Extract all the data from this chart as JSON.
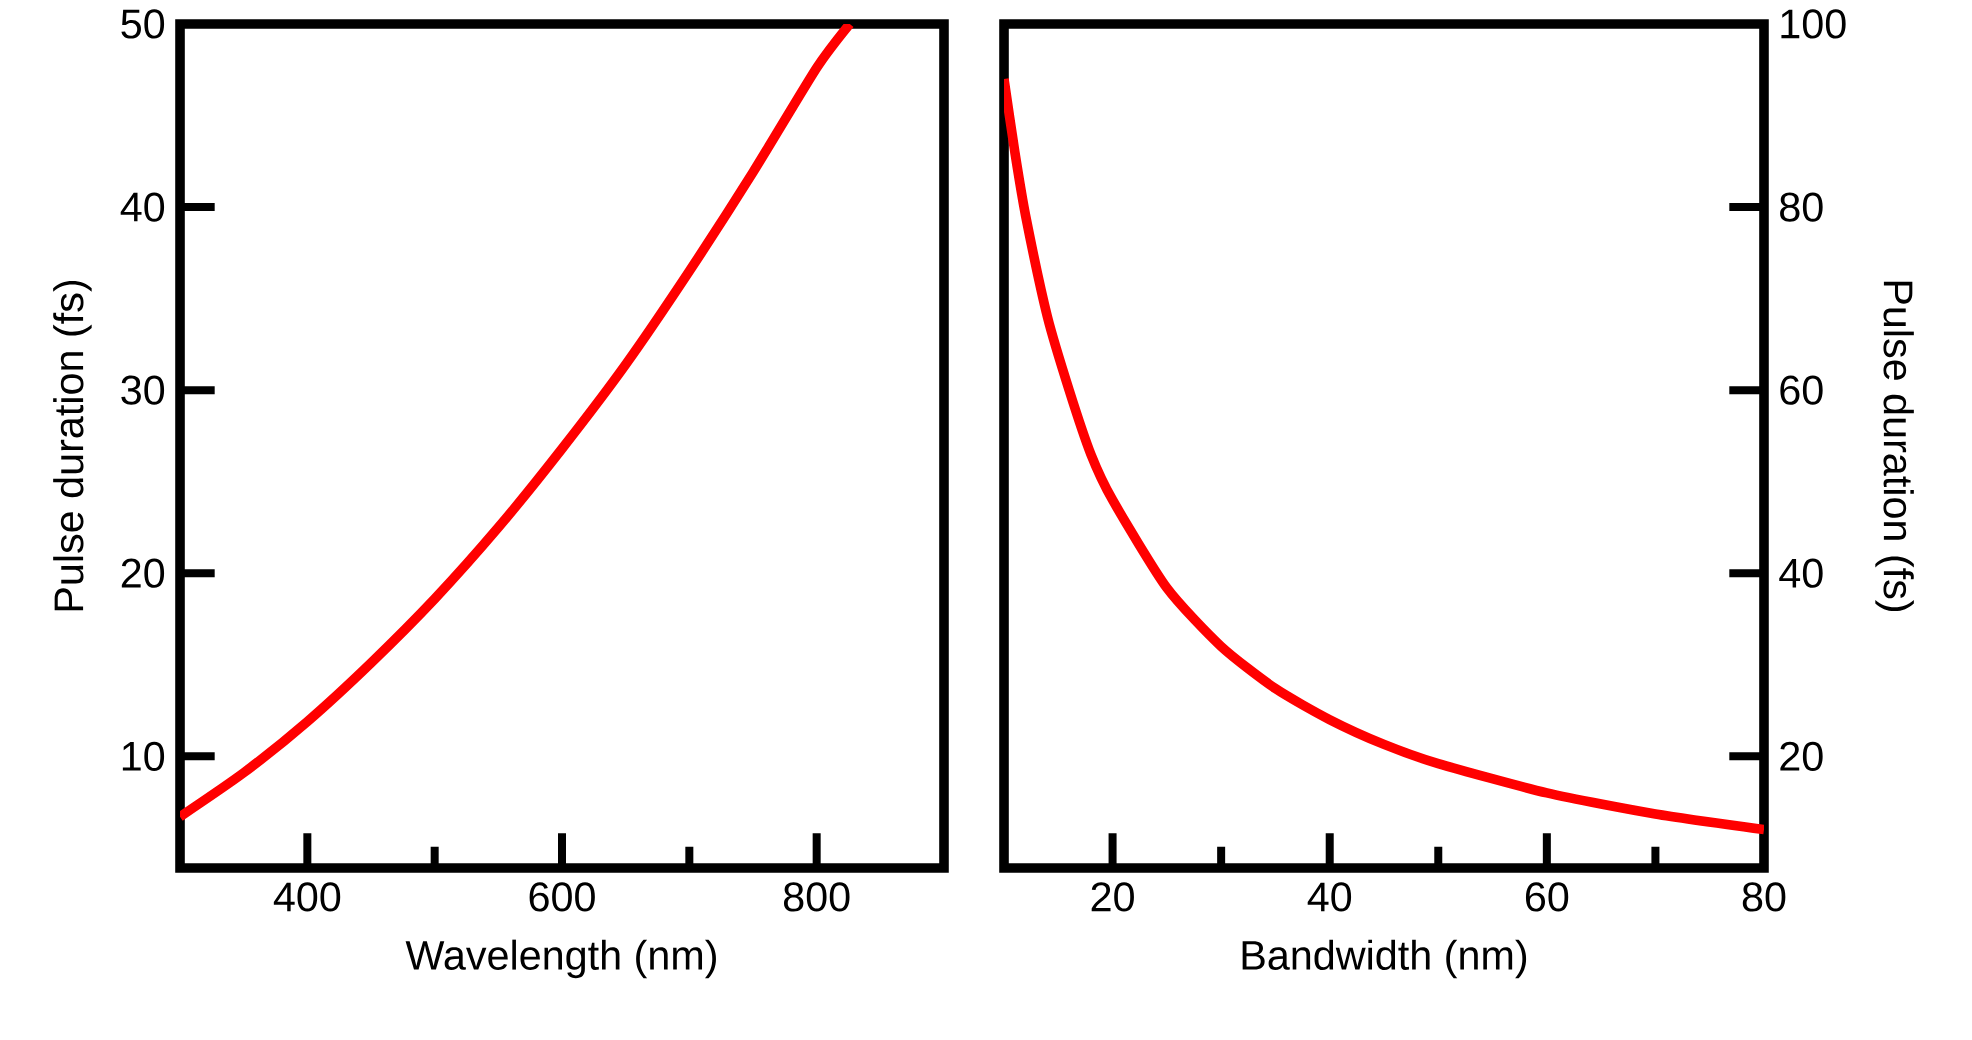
{
  "chart_data": [
    {
      "type": "line",
      "xlabel": "Wavelength (nm)",
      "ylabel": "Pulse duration (fs)",
      "xlim": [
        300,
        900
      ],
      "ylim": [
        3.9,
        50
      ],
      "xticks": [
        400,
        {
          "value": 500,
          "label": null
        },
        600,
        {
          "value": 700,
          "label": null
        },
        800
      ],
      "yticks": [
        10,
        20,
        30,
        40,
        50
      ],
      "series": [
        {
          "color": "#ff0000",
          "x": [
            300,
            350,
            400,
            450,
            500,
            550,
            600,
            650,
            700,
            750,
            800,
            826
          ],
          "values": [
            6.7,
            9.1,
            11.9,
            15.1,
            18.6,
            22.5,
            26.8,
            31.4,
            36.5,
            41.9,
            47.6,
            50
          ]
        }
      ]
    },
    {
      "type": "line",
      "xlabel": "Bandwidth (nm)",
      "y2label": "Pulse duration (fs)",
      "xlim": [
        10,
        80
      ],
      "y2lim": [
        7.8,
        100
      ],
      "xticks": [
        20,
        {
          "value": 30,
          "label": null
        },
        40,
        {
          "value": 50,
          "label": null
        },
        60,
        {
          "value": 70,
          "label": null
        },
        80
      ],
      "y2ticks": [
        20,
        40,
        60,
        80,
        100
      ],
      "series": [
        {
          "color": "#ff0000",
          "axis": "y2",
          "x": [
            10,
            11,
            12,
            14,
            16,
            18,
            20,
            25,
            30,
            35,
            40,
            45,
            50,
            60,
            70,
            80
          ],
          "values": [
            94,
            86,
            79,
            68,
            60,
            53,
            48,
            38.4,
            32,
            27.4,
            24,
            21.3,
            19.2,
            16,
            13.7,
            12
          ]
        }
      ]
    }
  ]
}
